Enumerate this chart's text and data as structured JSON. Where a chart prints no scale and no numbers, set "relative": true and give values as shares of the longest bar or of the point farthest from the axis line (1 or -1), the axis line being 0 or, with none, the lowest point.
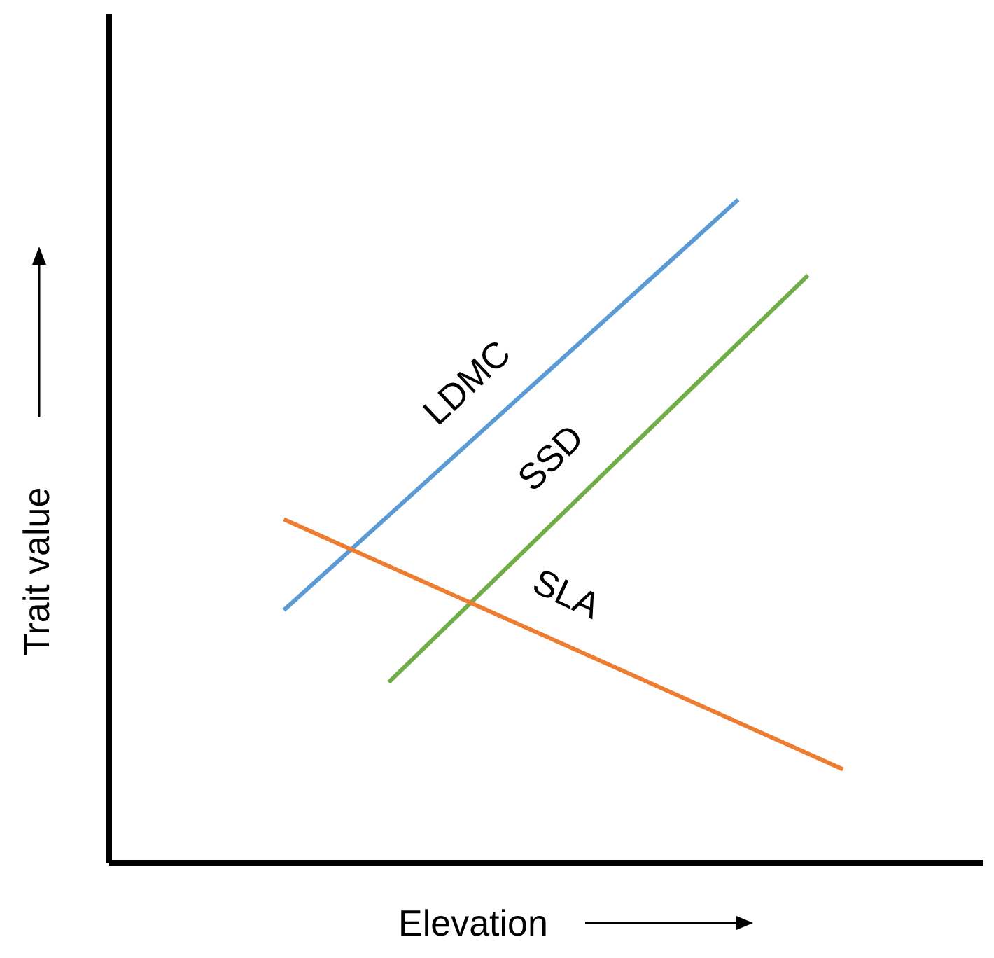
{
  "chart_data": {
    "type": "line",
    "relative": true,
    "xlabel": "Elevation",
    "ylabel": "Trait value",
    "legend": false,
    "grid": false,
    "marker": "none",
    "line_style": "solid",
    "categories": [
      null,
      null,
      null,
      null,
      null,
      null,
      null,
      null,
      null,
      null,
      null,
      null,
      null,
      null,
      null,
      null,
      null,
      null,
      null,
      null,
      null,
      null,
      null,
      null,
      null,
      null
    ],
    "series": [
      {
        "name": "LDMC",
        "color": "#5b9bd5",
        "values": [
          null,
          null,
          null,
          null,
          null,
          0.381,
          null,
          null,
          null,
          null,
          null,
          null,
          null,
          null,
          null,
          null,
          null,
          null,
          1,
          null,
          null,
          null,
          null,
          null,
          null,
          null
        ]
      },
      {
        "name": "SSD",
        "color": "#70ad47",
        "values": [
          null,
          null,
          null,
          null,
          null,
          null,
          null,
          null,
          0.272,
          null,
          null,
          null,
          null,
          null,
          null,
          null,
          null,
          null,
          null,
          null,
          0.886,
          null,
          null,
          null,
          null,
          null
        ]
      },
      {
        "name": "SLA",
        "color": "#ed7d31",
        "values": [
          null,
          null,
          null,
          null,
          null,
          0.518,
          null,
          null,
          null,
          null,
          null,
          null,
          null,
          null,
          null,
          null,
          null,
          null,
          null,
          null,
          null,
          0.141,
          null,
          null,
          null,
          null
        ]
      }
    ]
  }
}
